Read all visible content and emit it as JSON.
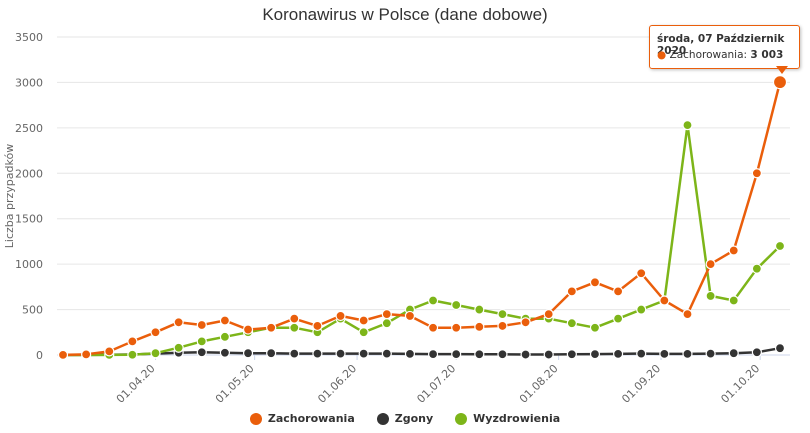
{
  "title": "Koronawirus w Polsce (dane dobowe)",
  "chart_data": {
    "type": "line",
    "title": "Koronawirus w Polsce (dane dobowe)",
    "xlabel": "",
    "ylabel": "Liczba przypadków",
    "ylim": [
      0,
      3500
    ],
    "yticks": [
      0,
      500,
      1000,
      1500,
      2000,
      2500,
      3000,
      3500
    ],
    "xticks": [
      "01.04.20",
      "01.05.20",
      "01.06.20",
      "01.07.20",
      "01.08.20",
      "01.09.20",
      "01.10.20"
    ],
    "x_start": "04.03.20",
    "x_end": "07.10.20",
    "grid": "horizontal",
    "legend_position": "bottom",
    "series": [
      {
        "name": "Zachorowania",
        "color": "#ea5e0b",
        "sampled_every_days": 7,
        "dates": [
          "04.03.20",
          "11.03.20",
          "18.03.20",
          "25.03.20",
          "01.04.20",
          "08.04.20",
          "15.04.20",
          "22.04.20",
          "29.04.20",
          "06.05.20",
          "13.05.20",
          "20.05.20",
          "27.05.20",
          "03.06.20",
          "10.06.20",
          "17.06.20",
          "24.06.20",
          "01.07.20",
          "08.07.20",
          "15.07.20",
          "22.07.20",
          "29.07.20",
          "05.08.20",
          "12.08.20",
          "19.08.20",
          "26.08.20",
          "02.09.20",
          "09.09.20",
          "16.09.20",
          "23.09.20",
          "30.09.20",
          "07.10.20"
        ],
        "values": [
          1,
          7,
          40,
          150,
          250,
          360,
          330,
          380,
          280,
          300,
          400,
          320,
          430,
          380,
          450,
          430,
          300,
          300,
          310,
          320,
          360,
          450,
          700,
          800,
          700,
          900,
          600,
          450,
          1000,
          1150,
          2000,
          3003
        ]
      },
      {
        "name": "Zgony",
        "color": "#333333",
        "sampled_every_days": 7,
        "dates": [
          "04.03.20",
          "11.03.20",
          "18.03.20",
          "25.03.20",
          "01.04.20",
          "08.04.20",
          "15.04.20",
          "22.04.20",
          "29.04.20",
          "06.05.20",
          "13.05.20",
          "20.05.20",
          "27.05.20",
          "03.06.20",
          "10.06.20",
          "17.06.20",
          "24.06.20",
          "01.07.20",
          "08.07.20",
          "15.07.20",
          "22.07.20",
          "29.07.20",
          "05.08.20",
          "12.08.20",
          "19.08.20",
          "26.08.20",
          "02.09.20",
          "09.09.20",
          "16.09.20",
          "23.09.20",
          "30.09.20",
          "07.10.20"
        ],
        "values": [
          0,
          1,
          2,
          5,
          15,
          25,
          30,
          25,
          20,
          20,
          15,
          15,
          15,
          15,
          15,
          12,
          10,
          10,
          8,
          8,
          5,
          5,
          8,
          10,
          12,
          15,
          12,
          12,
          15,
          20,
          30,
          75
        ]
      },
      {
        "name": "Wyzdrowienia",
        "color": "#7db519",
        "sampled_every_days": 7,
        "dates": [
          "04.03.20",
          "11.03.20",
          "18.03.20",
          "25.03.20",
          "01.04.20",
          "08.04.20",
          "15.04.20",
          "22.04.20",
          "29.04.20",
          "06.05.20",
          "13.05.20",
          "20.05.20",
          "27.05.20",
          "03.06.20",
          "10.06.20",
          "17.06.20",
          "24.06.20",
          "01.07.20",
          "08.07.20",
          "15.07.20",
          "22.07.20",
          "29.07.20",
          "05.08.20",
          "12.08.20",
          "19.08.20",
          "26.08.20",
          "02.09.20",
          "09.09.20",
          "16.09.20",
          "23.09.20",
          "30.09.20",
          "07.10.20"
        ],
        "values": [
          0,
          0,
          1,
          3,
          20,
          80,
          150,
          200,
          250,
          300,
          300,
          250,
          400,
          250,
          350,
          500,
          600,
          550,
          500,
          450,
          400,
          400,
          350,
          300,
          400,
          500,
          600,
          2530,
          650,
          600,
          950,
          1200
        ]
      }
    ]
  },
  "tooltip": {
    "title": "środa, 07 Październik 2020",
    "bullet": "●",
    "series_label": "Zachorowania:",
    "value": "3 003",
    "color": "#ea5e0b"
  },
  "legend": [
    {
      "label": "Zachorowania",
      "color": "#ea5e0b"
    },
    {
      "label": "Zgony",
      "color": "#333333"
    },
    {
      "label": "Wyzdrowienia",
      "color": "#7db519"
    }
  ]
}
